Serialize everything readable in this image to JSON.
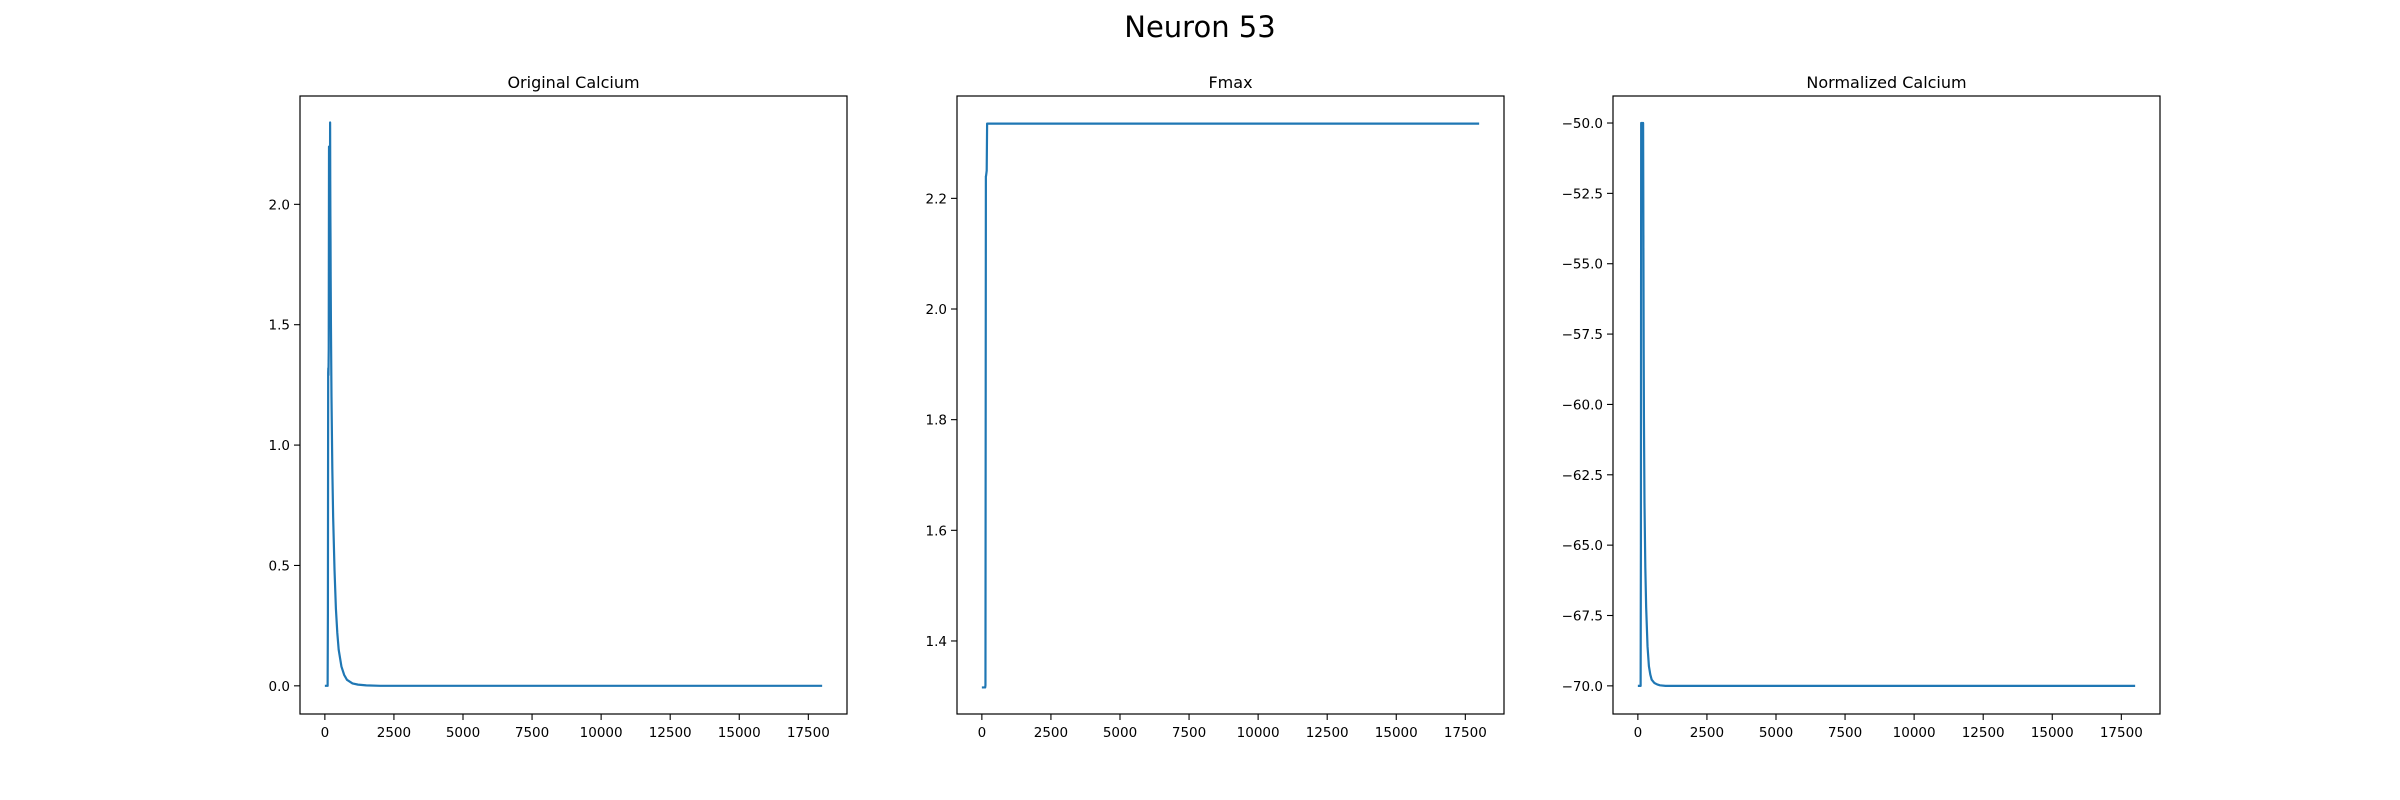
{
  "figure": {
    "title": "Neuron 53"
  },
  "chart_data": [
    {
      "type": "line",
      "title": "Original Calcium",
      "xlabel": "",
      "ylabel": "",
      "xlim": [
        -900,
        18900
      ],
      "ylim": [
        -0.117,
        2.45
      ],
      "xticks": [
        0,
        2500,
        5000,
        7500,
        10000,
        12500,
        15000,
        17500
      ],
      "xtick_labels": [
        "0",
        "2500",
        "5000",
        "7500",
        "10000",
        "12500",
        "15000",
        "17500"
      ],
      "yticks": [
        0.0,
        0.5,
        1.0,
        1.5,
        2.0
      ],
      "ytick_labels": [
        "0.0",
        "0.5",
        "1.0",
        "1.5",
        "2.0"
      ],
      "grid": false,
      "series": [
        {
          "color": "#1f77b4",
          "x": [
            0,
            100,
            110,
            120,
            125,
            130,
            140,
            150,
            155,
            160,
            165,
            170,
            175,
            180,
            185,
            190,
            195,
            200,
            205,
            210,
            220,
            240,
            270,
            300,
            350,
            400,
            450,
            500,
            600,
            700,
            800,
            1000,
            1200,
            1500,
            2000,
            3000,
            5000,
            10000,
            15000,
            18000
          ],
          "y": [
            0.0,
            0.0,
            0.3,
            1.3,
            1.32,
            1.29,
            1.4,
            2.24,
            2.0,
            1.72,
            2.1,
            2.0,
            2.2,
            2.23,
            2.05,
            2.34,
            2.1,
            1.95,
            1.85,
            1.7,
            1.5,
            1.2,
            0.9,
            0.7,
            0.48,
            0.32,
            0.22,
            0.15,
            0.08,
            0.045,
            0.025,
            0.01,
            0.005,
            0.002,
            0.0,
            0.0,
            0.0,
            0.0,
            0.0,
            0.0
          ]
        }
      ]
    },
    {
      "type": "line",
      "title": "Fmax",
      "xlabel": "",
      "ylabel": "",
      "xlim": [
        -900,
        18900
      ],
      "ylim": [
        1.268,
        2.385
      ],
      "xticks": [
        0,
        2500,
        5000,
        7500,
        10000,
        12500,
        15000,
        17500
      ],
      "xtick_labels": [
        "0",
        "2500",
        "5000",
        "7500",
        "10000",
        "12500",
        "15000",
        "17500"
      ],
      "yticks": [
        1.4,
        1.6,
        1.8,
        2.0,
        2.2
      ],
      "ytick_labels": [
        "1.4",
        "1.6",
        "1.8",
        "2.0",
        "2.2"
      ],
      "grid": false,
      "series": [
        {
          "color": "#1f77b4",
          "x": [
            0,
            120,
            130,
            145,
            150,
            175,
            190,
            200,
            18000
          ],
          "y": [
            1.316,
            1.316,
            1.32,
            2.24,
            2.24,
            2.25,
            2.335,
            2.335,
            2.335
          ]
        }
      ]
    },
    {
      "type": "line",
      "title": "Normalized Calcium",
      "xlabel": "",
      "ylabel": "",
      "xlim": [
        -900,
        18900
      ],
      "ylim": [
        -71.0,
        -49.04
      ],
      "xticks": [
        0,
        2500,
        5000,
        7500,
        10000,
        12500,
        15000,
        17500
      ],
      "xtick_labels": [
        "0",
        "2500",
        "5000",
        "7500",
        "10000",
        "12500",
        "15000",
        "17500"
      ],
      "yticks": [
        -70.0,
        -67.5,
        -65.0,
        -62.5,
        -60.0,
        -57.5,
        -55.0,
        -52.5,
        -50.0
      ],
      "ytick_labels": [
        "−70.0",
        "−67.5",
        "−65.0",
        "−62.5",
        "−60.0",
        "−57.5",
        "−55.0",
        "−52.5",
        "−50.0"
      ],
      "grid": false,
      "series": [
        {
          "color": "#1f77b4",
          "x": [
            0,
            100,
            110,
            120,
            125,
            130,
            140,
            150,
            160,
            165,
            170,
            180,
            185,
            190,
            195,
            200,
            205,
            210,
            220,
            240,
            270,
            300,
            350,
            400,
            450,
            500,
            600,
            700,
            800,
            1000,
            1200,
            1500,
            2000,
            5000,
            10000,
            15000,
            18000
          ],
          "y": [
            -70.0,
            -70.0,
            -65.0,
            -50.0,
            -50.0,
            -50.0,
            -51.0,
            -50.0,
            -52.0,
            -51.0,
            -50.2,
            -50.0,
            -52.5,
            -50.0,
            -52.0,
            -54.0,
            -56.0,
            -58.0,
            -60.5,
            -63.5,
            -65.8,
            -67.2,
            -68.6,
            -69.3,
            -69.6,
            -69.78,
            -69.9,
            -69.95,
            -69.98,
            -70.0,
            -70.0,
            -70.0,
            -70.0,
            -70.0,
            -70.0,
            -70.0,
            -70.0
          ]
        }
      ]
    }
  ]
}
